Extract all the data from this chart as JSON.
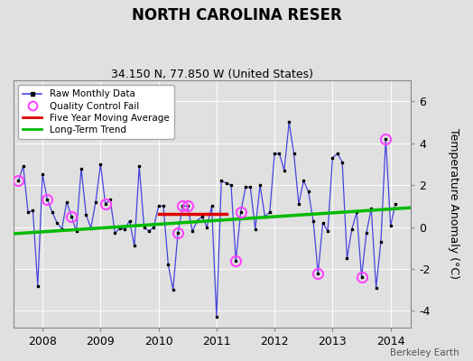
{
  "title": "NORTH CAROLINA RESER",
  "subtitle": "34.150 N, 77.850 W (United States)",
  "watermark": "Berkeley Earth",
  "ylabel": "Temperature Anomaly (°C)",
  "xlim": [
    2007.5,
    2014.35
  ],
  "ylim": [
    -4.8,
    7.0
  ],
  "yticks": [
    -4,
    -2,
    0,
    2,
    4,
    6
  ],
  "xticks": [
    2008,
    2009,
    2010,
    2011,
    2012,
    2013,
    2014
  ],
  "background_color": "#e0e0e0",
  "plot_bg_color": "#e0e0e0",
  "raw_data": {
    "x": [
      2007.583,
      2007.667,
      2007.75,
      2007.833,
      2007.917,
      2008.0,
      2008.083,
      2008.167,
      2008.25,
      2008.333,
      2008.417,
      2008.5,
      2008.583,
      2008.667,
      2008.75,
      2008.833,
      2008.917,
      2009.0,
      2009.083,
      2009.167,
      2009.25,
      2009.333,
      2009.417,
      2009.5,
      2009.583,
      2009.667,
      2009.75,
      2009.833,
      2009.917,
      2010.0,
      2010.083,
      2010.167,
      2010.25,
      2010.333,
      2010.417,
      2010.5,
      2010.583,
      2010.667,
      2010.75,
      2010.833,
      2010.917,
      2011.0,
      2011.083,
      2011.167,
      2011.25,
      2011.333,
      2011.417,
      2011.5,
      2011.583,
      2011.667,
      2011.75,
      2011.833,
      2011.917,
      2012.0,
      2012.083,
      2012.167,
      2012.25,
      2012.333,
      2012.417,
      2012.5,
      2012.583,
      2012.667,
      2012.75,
      2012.833,
      2012.917,
      2013.0,
      2013.083,
      2013.167,
      2013.25,
      2013.333,
      2013.417,
      2013.5,
      2013.583,
      2013.667,
      2013.75,
      2013.833,
      2013.917,
      2014.0,
      2014.083
    ],
    "y": [
      2.2,
      2.9,
      0.7,
      0.8,
      -2.8,
      2.5,
      1.3,
      0.7,
      0.2,
      -0.1,
      1.2,
      0.5,
      -0.2,
      2.8,
      0.6,
      -0.05,
      1.2,
      3.0,
      1.1,
      1.3,
      -0.3,
      -0.05,
      -0.1,
      0.3,
      -0.9,
      2.9,
      0.0,
      -0.2,
      0.0,
      1.0,
      1.0,
      -1.8,
      -3.0,
      -0.3,
      1.0,
      1.0,
      -0.2,
      0.3,
      0.5,
      0.0,
      1.0,
      -4.3,
      2.2,
      2.1,
      2.0,
      -1.6,
      0.7,
      1.9,
      1.9,
      -0.1,
      2.0,
      0.5,
      0.7,
      3.5,
      3.5,
      2.7,
      5.0,
      3.5,
      1.1,
      2.2,
      1.7,
      0.3,
      -2.2,
      0.2,
      -0.2,
      3.3,
      3.5,
      3.1,
      -1.5,
      -0.1,
      0.7,
      -2.4,
      -0.3,
      0.9,
      -2.9,
      -0.7,
      4.2,
      0.05,
      1.1
    ]
  },
  "qc_fail_x": [
    2007.583,
    2008.083,
    2008.5,
    2009.083,
    2010.333,
    2010.417,
    2010.5,
    2011.333,
    2011.417,
    2012.75,
    2013.5,
    2013.917
  ],
  "qc_fail_y": [
    2.2,
    1.3,
    0.5,
    1.1,
    -0.3,
    1.0,
    1.0,
    -1.6,
    0.7,
    -2.2,
    -2.4,
    4.2
  ],
  "moving_avg": {
    "x": [
      2010.0,
      2010.083,
      2010.167,
      2010.25,
      2010.333,
      2010.417,
      2010.5,
      2010.583,
      2010.667,
      2010.75,
      2010.833,
      2010.917,
      2011.0,
      2011.083,
      2011.167
    ],
    "y": [
      0.62,
      0.62,
      0.62,
      0.62,
      0.62,
      0.62,
      0.62,
      0.62,
      0.62,
      0.62,
      0.62,
      0.62,
      0.62,
      0.62,
      0.62
    ]
  },
  "trend": {
    "x": [
      2007.5,
      2014.35
    ],
    "y": [
      -0.32,
      0.92
    ]
  },
  "raw_line_color": "#4444dd",
  "raw_marker_color": "#000000",
  "qc_color": "#ff44ff",
  "moving_avg_color": "#dd0000",
  "trend_color": "#00bb00",
  "grid_color": "#ffffff",
  "spine_color": "#888888"
}
